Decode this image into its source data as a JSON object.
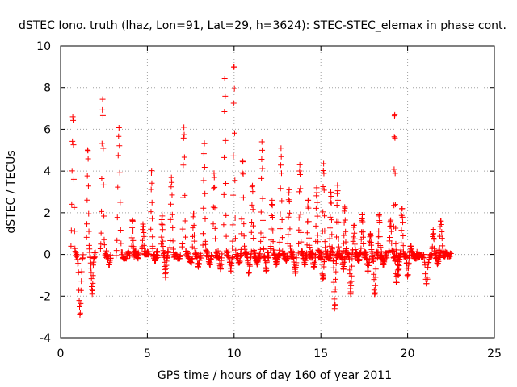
{
  "chart_data": {
    "type": "scatter",
    "title": "dSTEC Iono. truth (lhaz, Lon=91, Lat=29, h=3624): STEC-STEC_elemax in phase cont.",
    "xlabel": "GPS time / hours of day 160 of year 2011",
    "ylabel": "dSTEC  / TECUs",
    "xlim": [
      0,
      25
    ],
    "ylim": [
      -4,
      10
    ],
    "xticks": [
      "0",
      "5",
      "10",
      "15",
      "20",
      "25"
    ],
    "yticks": [
      "-4",
      "-2",
      "0",
      "2",
      "4",
      "6",
      "8",
      "10"
    ],
    "grid": true,
    "marker": "+",
    "color": "#ff0000",
    "arcs": [
      {
        "t0": 0.6,
        "t1": 1.3,
        "min": -2.9,
        "max": 6.6
      },
      {
        "t0": 1.5,
        "t1": 2.0,
        "min": -1.9,
        "max": 5.1
      },
      {
        "t0": 2.3,
        "t1": 2.9,
        "min": -0.5,
        "max": 7.5
      },
      {
        "t0": 3.2,
        "t1": 4.0,
        "min": -0.2,
        "max": 6.1
      },
      {
        "t0": 4.1,
        "t1": 4.5,
        "min": -0.2,
        "max": 1.8
      },
      {
        "t0": 4.7,
        "t1": 5.1,
        "min": 0.0,
        "max": 1.5
      },
      {
        "t0": 5.2,
        "t1": 5.6,
        "min": -0.3,
        "max": 4.1
      },
      {
        "t0": 5.8,
        "t1": 6.2,
        "min": -1.1,
        "max": 2.0
      },
      {
        "t0": 6.3,
        "t1": 6.9,
        "min": -0.2,
        "max": 3.8
      },
      {
        "t0": 7.0,
        "t1": 7.6,
        "min": -0.4,
        "max": 6.1
      },
      {
        "t0": 7.6,
        "t1": 8.1,
        "min": -0.6,
        "max": 2.0
      },
      {
        "t0": 8.2,
        "t1": 8.7,
        "min": -0.5,
        "max": 5.5
      },
      {
        "t0": 8.8,
        "t1": 9.3,
        "min": -0.7,
        "max": 3.9
      },
      {
        "t0": 9.4,
        "t1": 9.9,
        "min": -0.8,
        "max": 8.8
      },
      {
        "t0": 9.9,
        "t1": 10.4,
        "min": -0.4,
        "max": 9.2
      },
      {
        "t0": 10.4,
        "t1": 11.0,
        "min": -0.9,
        "max": 4.7
      },
      {
        "t0": 11.0,
        "t1": 11.5,
        "min": -0.5,
        "max": 3.3
      },
      {
        "t0": 11.5,
        "t1": 12.0,
        "min": -0.8,
        "max": 5.4
      },
      {
        "t0": 12.1,
        "t1": 12.6,
        "min": -0.5,
        "max": 2.6
      },
      {
        "t0": 12.6,
        "t1": 13.1,
        "min": -0.3,
        "max": 5.1
      },
      {
        "t0": 13.1,
        "t1": 13.6,
        "min": -0.9,
        "max": 3.1
      },
      {
        "t0": 13.7,
        "t1": 14.2,
        "min": -0.5,
        "max": 4.3
      },
      {
        "t0": 14.2,
        "t1": 14.7,
        "min": -0.6,
        "max": 2.6
      },
      {
        "t0": 14.7,
        "t1": 15.2,
        "min": -1.3,
        "max": 3.2
      },
      {
        "t0": 15.1,
        "t1": 15.6,
        "min": -0.2,
        "max": 4.4
      },
      {
        "t0": 15.5,
        "t1": 16.0,
        "min": -2.6,
        "max": 3.0
      },
      {
        "t0": 15.9,
        "t1": 16.4,
        "min": -0.8,
        "max": 3.4
      },
      {
        "t0": 16.3,
        "t1": 16.8,
        "min": -1.9,
        "max": 2.3
      },
      {
        "t0": 16.8,
        "t1": 17.3,
        "min": -0.3,
        "max": 1.4
      },
      {
        "t0": 17.3,
        "t1": 17.8,
        "min": -0.8,
        "max": 1.9
      },
      {
        "t0": 17.8,
        "t1": 18.3,
        "min": -1.9,
        "max": 1.1
      },
      {
        "t0": 18.3,
        "t1": 18.8,
        "min": -0.5,
        "max": 1.9
      },
      {
        "t0": 18.9,
        "t1": 19.5,
        "min": -1.4,
        "max": 1.7
      },
      {
        "t0": 19.2,
        "t1": 19.6,
        "min": -1.0,
        "max": 6.9
      },
      {
        "t0": 19.6,
        "t1": 20.1,
        "min": -1.1,
        "max": 2.2
      },
      {
        "t0": 20.1,
        "t1": 20.6,
        "min": -0.2,
        "max": 0.4
      },
      {
        "t0": 20.6,
        "t1": 21.4,
        "min": -1.4,
        "max": 0.0
      },
      {
        "t0": 21.4,
        "t1": 21.9,
        "min": -0.5,
        "max": 1.2
      },
      {
        "t0": 21.8,
        "t1": 22.5,
        "min": -0.1,
        "max": 1.6
      }
    ]
  }
}
